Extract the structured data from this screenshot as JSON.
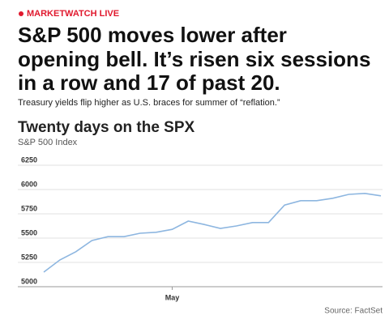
{
  "kicker": "MARKETWATCH LIVE",
  "headline": [
    "S&P 500 moves lower after",
    "opening bell. It’s risen six sessions",
    "in a row and 17 of past 20."
  ],
  "subhead": "Treasury yields flip higher as U.S. braces for summer of “reflation.”",
  "chart_data": {
    "type": "line",
    "title": "Twenty days on the SPX",
    "subtitle": "S&P 500 Index",
    "source": "Source: FactSet",
    "categories": [
      null,
      null,
      null,
      null,
      null,
      null,
      null,
      null,
      "May",
      null,
      null,
      null,
      null,
      null,
      null,
      null,
      null,
      null,
      null,
      null,
      null,
      null
    ],
    "series": [
      {
        "color": "#8db6e0",
        "values": [
          5150,
          5275,
          5360,
          5475,
          5515,
          5515,
          5550,
          5560,
          5590,
          5675,
          5640,
          5600,
          5625,
          5660,
          5660,
          5840,
          5885,
          5885,
          5910,
          5950,
          5960,
          5935
        ]
      }
    ],
    "ylim": [
      5000,
      6250
    ],
    "yticks": [
      5000,
      5250,
      5500,
      5750,
      6000,
      6250
    ],
    "grid": true
  }
}
